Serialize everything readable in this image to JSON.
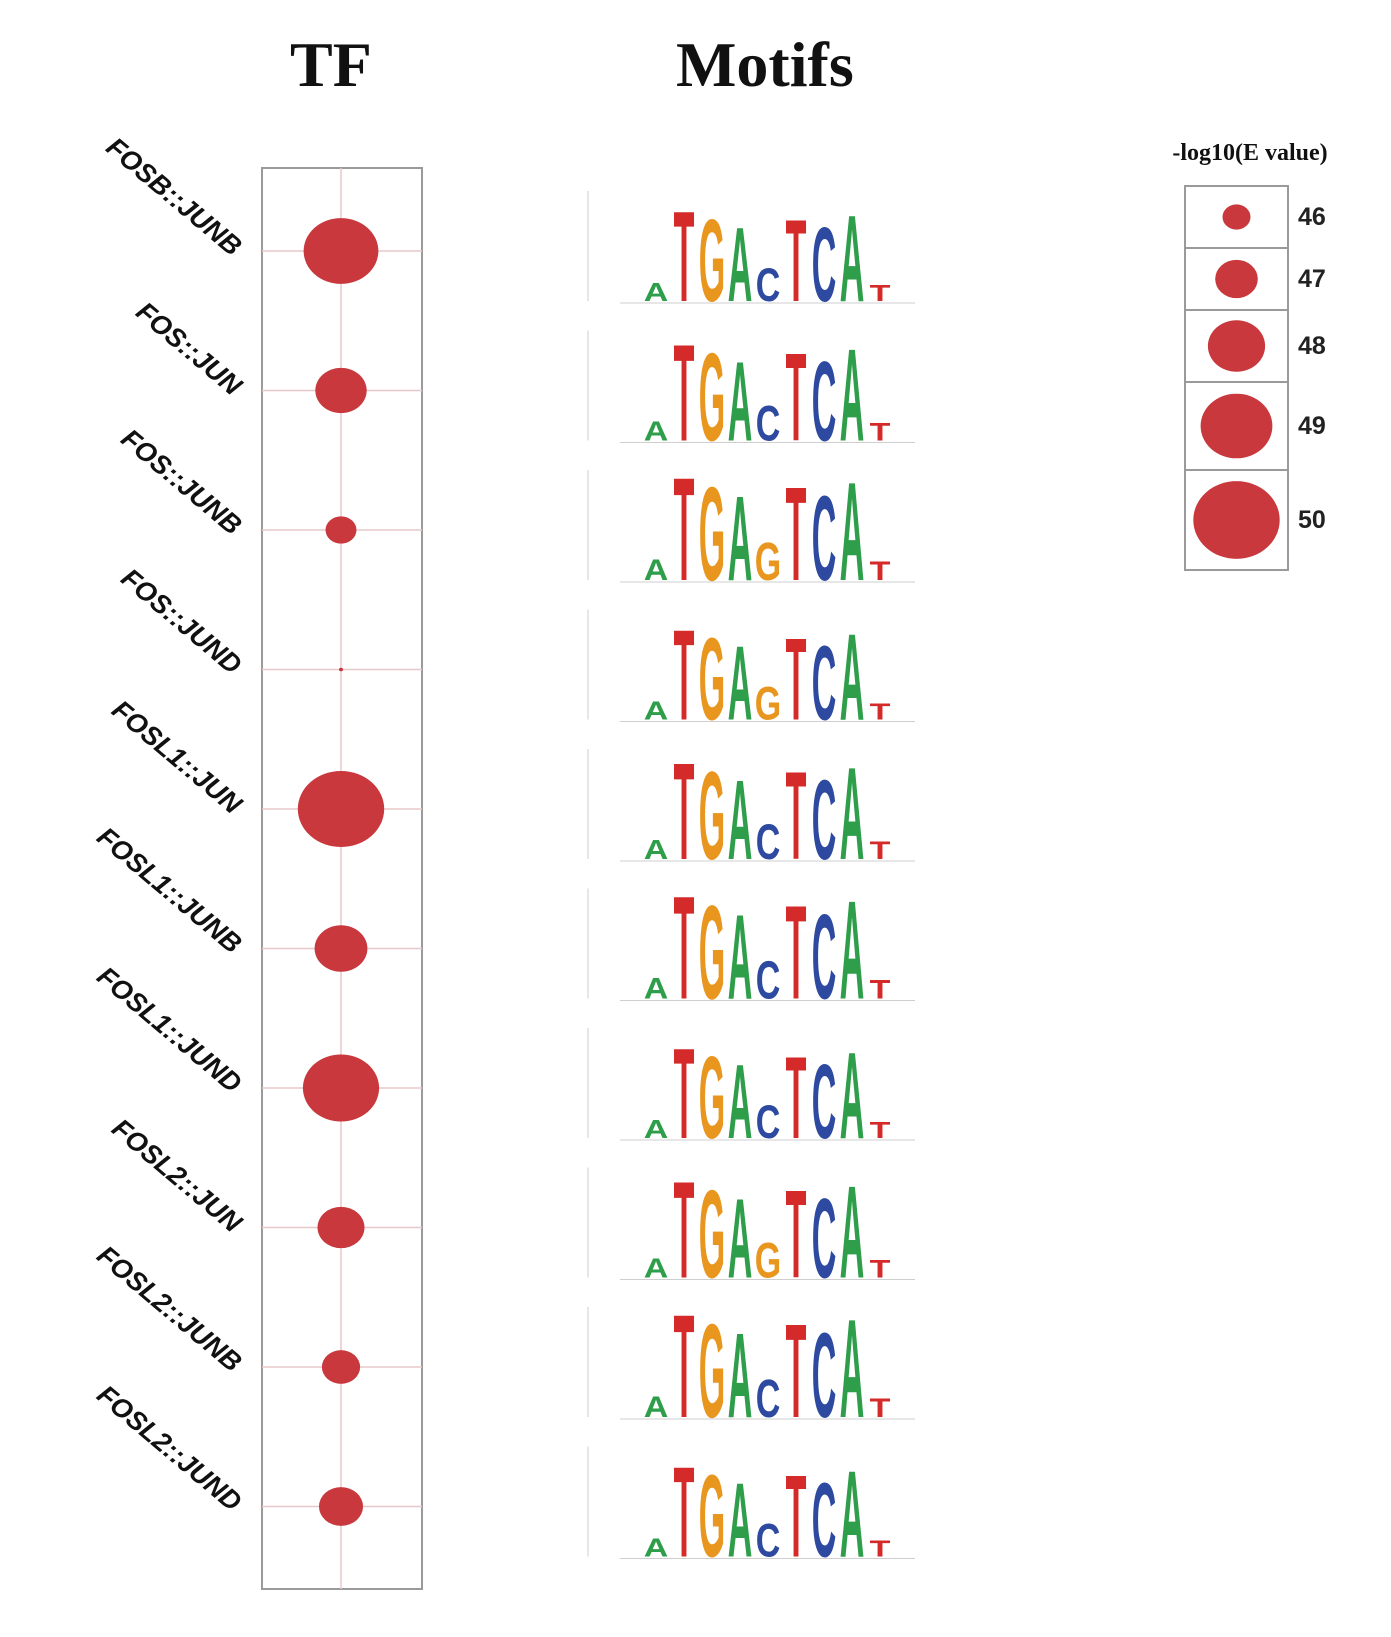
{
  "headers": {
    "tf": "TF",
    "motifs": "Motifs"
  },
  "chart_data": {
    "type": "bubble",
    "size_metric": "-log10(E value)",
    "categories": [
      "FOSB::JUNB",
      "FOS::JUN",
      "FOS::JUNB",
      "FOS::JUND",
      "FOSL1::JUN",
      "FOSL1::JUNB",
      "FOSL1::JUND",
      "FOSL2::JUN",
      "FOSL2::JUNB",
      "FOSL2::JUND"
    ],
    "values": [
      49.2,
      47.6,
      46.2,
      45.0,
      50.0,
      47.7,
      49.3,
      47.3,
      46.7,
      47.1
    ],
    "motifs": [
      "ATGACTCAT",
      "ATGACTCAT",
      "ATGAGTCAT",
      "ATGAGTCAT",
      "ATGACTCAT",
      "ATGACTCAT",
      "ATGACTCAT",
      "ATGAGTCAT",
      "ATGACTCAT",
      "ATGACTCAT"
    ],
    "legend": {
      "title": "-log10(E value)",
      "values": [
        46,
        47,
        48,
        49,
        50
      ]
    }
  },
  "colors": {
    "bubble": "#c8383d",
    "A": "#2e9e4a",
    "T": "#d42a2a",
    "G": "#e8961e",
    "C": "#2e4aa0",
    "frame": "#9a9a9a",
    "grid": "#e8c8c8"
  }
}
